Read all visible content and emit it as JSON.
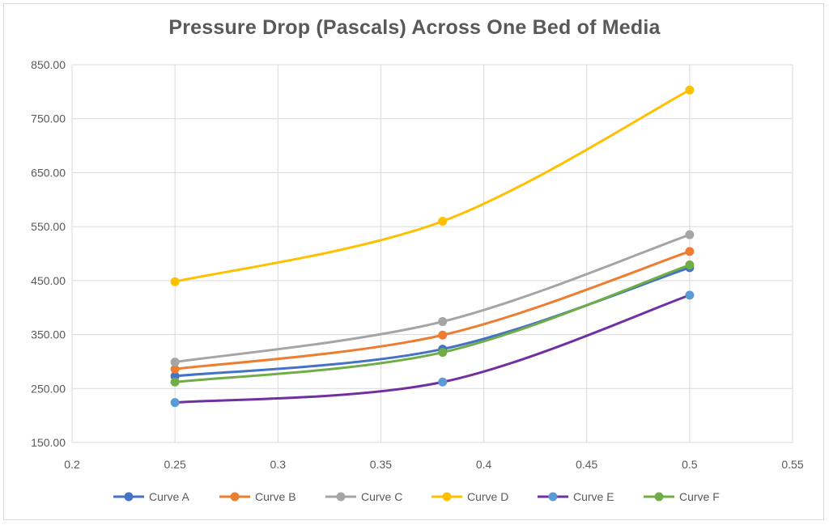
{
  "chart_data": {
    "type": "line",
    "title": "Pressure Drop (Pascals) Across One Bed of Media",
    "xlabel": "",
    "ylabel": "",
    "xlim": [
      0.2,
      0.55
    ],
    "ylim": [
      150,
      850
    ],
    "x_ticks": [
      "0.2",
      "0.25",
      "0.3",
      "0.35",
      "0.4",
      "0.45",
      "0.5",
      "0.55"
    ],
    "y_ticks": [
      "150.00",
      "250.00",
      "350.00",
      "450.00",
      "550.00",
      "650.00",
      "750.00",
      "850.00"
    ],
    "x": [
      0.25,
      0.38,
      0.5
    ],
    "series": [
      {
        "name": "Curve A",
        "color": "#4472c4",
        "marker": "#4472c4",
        "values": [
          273,
          323,
          474
        ]
      },
      {
        "name": "Curve B",
        "color": "#ed7d31",
        "marker": "#ed7d31",
        "values": [
          286,
          349,
          504
        ]
      },
      {
        "name": "Curve C",
        "color": "#a5a5a5",
        "marker": "#a5a5a5",
        "values": [
          299,
          374,
          535
        ]
      },
      {
        "name": "Curve D",
        "color": "#ffc000",
        "marker": "#ffc000",
        "values": [
          448,
          560,
          803
        ]
      },
      {
        "name": "Curve E",
        "color": "#7030a0",
        "marker": "#5b9bd5",
        "values": [
          224,
          262,
          423
        ]
      },
      {
        "name": "Curve F",
        "color": "#70ad47",
        "marker": "#70ad47",
        "values": [
          262,
          317,
          479
        ]
      }
    ],
    "grid": true,
    "legend_position": "bottom"
  }
}
